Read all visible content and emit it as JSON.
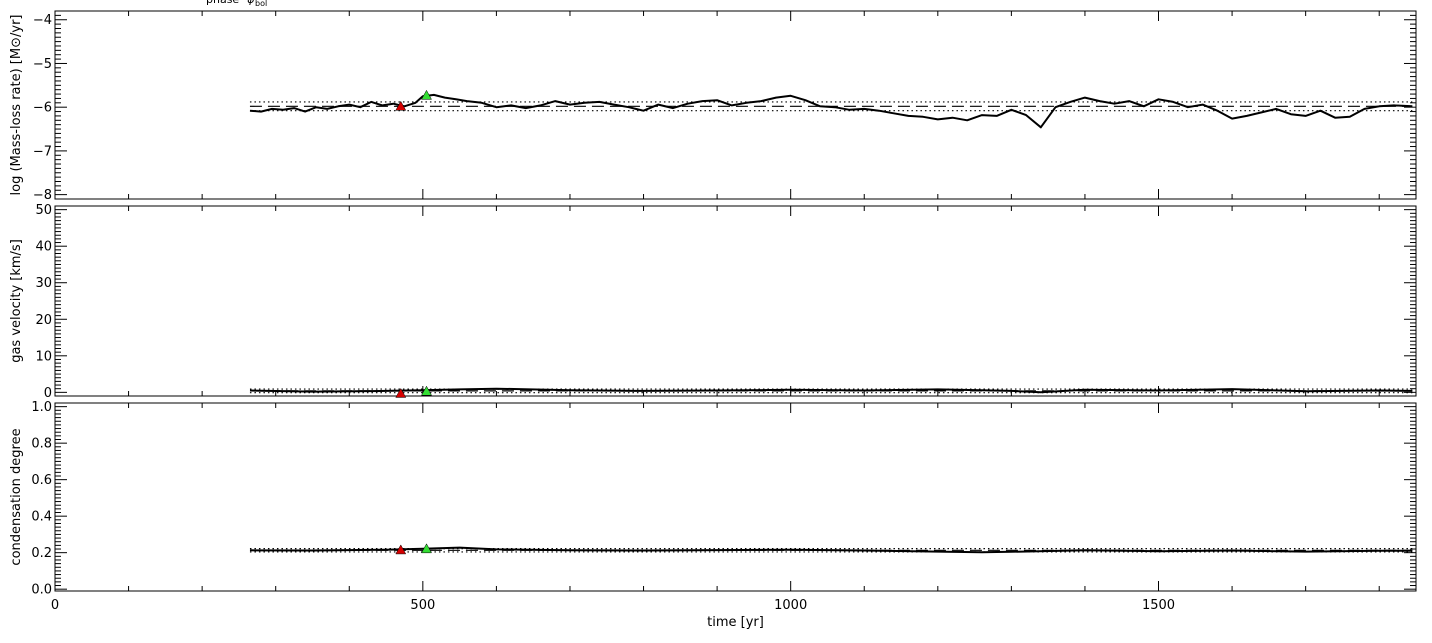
{
  "colors": {
    "background": "#ffffff",
    "axes": "#000000",
    "series": "#000000",
    "marker_red": "#d40000",
    "marker_green": "#33dd33"
  },
  "top_text": {
    "phase_label": "phase",
    "phase_symbol": "φ",
    "phase_subscript": "bol"
  },
  "chart_data": [
    {
      "type": "line",
      "xlabel": "",
      "ylabel": "log (Mass-loss rate) [M⊙/yr]",
      "xlim": [
        0,
        1850
      ],
      "ylim": [
        -8.1,
        -3.8
      ],
      "x_ticks": [
        0,
        500,
        1000,
        1500
      ],
      "y_ticks": [
        -8,
        -7,
        -6,
        -5,
        -4
      ],
      "y_tick_labels": [
        "−8",
        "−7",
        "−6",
        "−5",
        "−4"
      ],
      "grid": false,
      "series": [
        {
          "x": [
            265,
            280,
            295,
            310,
            325,
            340,
            355,
            370,
            385,
            400,
            415,
            430,
            445,
            460,
            475,
            490,
            500,
            515,
            530,
            545,
            560,
            580,
            600,
            620,
            640,
            660,
            680,
            700,
            720,
            740,
            760,
            780,
            800,
            820,
            840,
            860,
            880,
            900,
            920,
            940,
            960,
            980,
            1000,
            1020,
            1040,
            1060,
            1080,
            1100,
            1120,
            1140,
            1160,
            1180,
            1200,
            1220,
            1240,
            1260,
            1280,
            1300,
            1320,
            1340,
            1360,
            1380,
            1400,
            1420,
            1440,
            1460,
            1480,
            1500,
            1520,
            1540,
            1560,
            1580,
            1600,
            1620,
            1640,
            1660,
            1680,
            1700,
            1720,
            1740,
            1760,
            1780,
            1800,
            1820,
            1845
          ],
          "values": [
            -6.08,
            -6.1,
            -6.04,
            -6.06,
            -6.02,
            -6.1,
            -6.0,
            -6.04,
            -5.98,
            -5.94,
            -6.0,
            -5.88,
            -5.96,
            -5.92,
            -5.98,
            -5.9,
            -5.75,
            -5.72,
            -5.78,
            -5.82,
            -5.86,
            -5.9,
            -6.0,
            -5.96,
            -6.02,
            -5.96,
            -5.86,
            -5.94,
            -5.9,
            -5.88,
            -5.94,
            -6.0,
            -6.08,
            -5.94,
            -6.02,
            -5.92,
            -5.86,
            -5.84,
            -5.96,
            -5.9,
            -5.86,
            -5.78,
            -5.74,
            -5.84,
            -5.98,
            -6.0,
            -6.06,
            -6.04,
            -6.08,
            -6.14,
            -6.2,
            -6.22,
            -6.28,
            -6.24,
            -6.3,
            -6.18,
            -6.2,
            -6.06,
            -6.18,
            -6.46,
            -6.0,
            -5.88,
            -5.78,
            -5.86,
            -5.92,
            -5.86,
            -5.98,
            -5.82,
            -5.88,
            -6.0,
            -5.94,
            -6.08,
            -6.26,
            -6.2,
            -6.12,
            -6.04,
            -6.16,
            -6.2,
            -6.08,
            -6.24,
            -6.22,
            -6.04,
            -5.98,
            -5.96,
            -5.98
          ]
        }
      ],
      "reference_lines": [
        {
          "style": "dotted",
          "y": -5.88
        },
        {
          "style": "dashed",
          "y": -5.98
        },
        {
          "style": "dotted",
          "y": -6.08
        }
      ],
      "markers": [
        {
          "x": 470,
          "y": -5.98,
          "color": "#d40000"
        },
        {
          "x": 505,
          "y": -5.73,
          "color": "#33dd33"
        }
      ]
    },
    {
      "type": "line",
      "xlabel": "",
      "ylabel": "gas velocity [km/s]",
      "xlim": [
        0,
        1850
      ],
      "ylim": [
        -1,
        51
      ],
      "x_ticks": [
        0,
        500,
        1000,
        1500
      ],
      "y_ticks": [
        0,
        10,
        20,
        30,
        40,
        50
      ],
      "y_tick_labels": [
        "0",
        "10",
        "20",
        "30",
        "40",
        "50"
      ],
      "grid": false,
      "series": [
        {
          "x": [
            265,
            350,
            450,
            500,
            550,
            600,
            700,
            800,
            900,
            1000,
            1100,
            1200,
            1300,
            1340,
            1400,
            1500,
            1600,
            1700,
            1800,
            1845
          ],
          "values": [
            0.5,
            0.2,
            0.4,
            0.6,
            0.8,
            1.0,
            0.6,
            0.4,
            0.5,
            0.7,
            0.5,
            0.8,
            0.4,
            0.0,
            0.7,
            0.5,
            0.9,
            0.3,
            0.5,
            0.4
          ]
        }
      ],
      "reference_lines": [
        {
          "style": "dotted",
          "y": 0.9
        },
        {
          "style": "dashed",
          "y": 0.4
        },
        {
          "style": "dotted",
          "y": -0.1
        }
      ],
      "markers": [
        {
          "x": 470,
          "y": -0.3,
          "color": "#d40000"
        },
        {
          "x": 505,
          "y": 0.3,
          "color": "#33dd33"
        }
      ]
    },
    {
      "type": "line",
      "xlabel": "time [yr]",
      "ylabel": "condensation degree",
      "xlim": [
        0,
        1850
      ],
      "ylim": [
        -0.01,
        1.02
      ],
      "x_ticks": [
        0,
        500,
        1000,
        1500
      ],
      "x_tick_labels": [
        "0",
        "500",
        "1000",
        "1500"
      ],
      "y_ticks": [
        0.0,
        0.2,
        0.4,
        0.6,
        0.8,
        1.0
      ],
      "y_tick_labels": [
        "0.0",
        "0.2",
        "0.4",
        "0.6",
        "0.8",
        "1.0"
      ],
      "grid": false,
      "series": [
        {
          "x": [
            265,
            350,
            450,
            500,
            550,
            600,
            700,
            800,
            900,
            1000,
            1100,
            1200,
            1260,
            1300,
            1400,
            1500,
            1600,
            1700,
            1800,
            1845
          ],
          "values": [
            0.213,
            0.212,
            0.216,
            0.222,
            0.228,
            0.218,
            0.213,
            0.212,
            0.214,
            0.216,
            0.212,
            0.206,
            0.202,
            0.205,
            0.213,
            0.208,
            0.212,
            0.206,
            0.21,
            0.21
          ]
        }
      ],
      "reference_lines": [
        {
          "style": "dotted",
          "y": 0.222
        },
        {
          "style": "dashed",
          "y": 0.213
        },
        {
          "style": "dotted",
          "y": 0.204
        }
      ],
      "markers": [
        {
          "x": 470,
          "y": 0.215,
          "color": "#d40000"
        },
        {
          "x": 505,
          "y": 0.221,
          "color": "#33dd33"
        }
      ]
    }
  ]
}
